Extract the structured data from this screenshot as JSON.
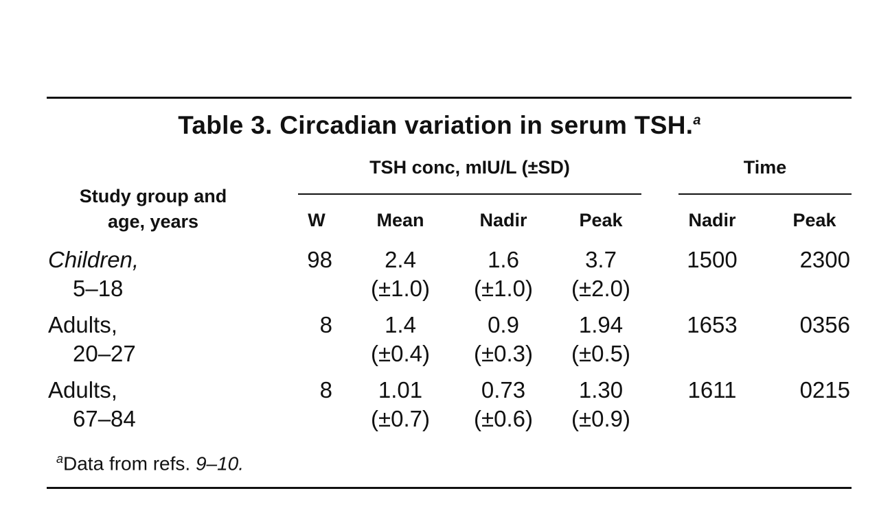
{
  "table": {
    "title": "Table 3. Circadian variation in serum TSH.",
    "title_footnote_mark": "a",
    "headers": {
      "study_group_line1": "Study group and",
      "study_group_line2": "age, years",
      "tsh_group": "TSH conc, mIU/L (±SD)",
      "time_group": "Time",
      "n": "W",
      "mean": "Mean",
      "nadir": "Nadir",
      "peak": "Peak",
      "time_nadir": "Nadir",
      "time_peak": "Peak"
    },
    "rows": [
      {
        "group": "Children,",
        "age": "5–18",
        "n": "98",
        "mean": "2.4",
        "mean_sd": "(±1.0)",
        "nadir": "1.6",
        "nadir_sd": "(±1.0)",
        "peak": "3.7",
        "peak_sd": "(±2.0)",
        "time_nadir": "1500",
        "time_peak": "2300"
      },
      {
        "group": "Adults,",
        "age": "20–27",
        "n": "8",
        "mean": "1.4",
        "mean_sd": "(±0.4)",
        "nadir": "0.9",
        "nadir_sd": "(±0.3)",
        "peak": "1.94",
        "peak_sd": "(±0.5)",
        "time_nadir": "1653",
        "time_peak": "0356"
      },
      {
        "group": "Adults,",
        "age": "67–84",
        "n": "8",
        "mean": "1.01",
        "mean_sd": "(±0.7)",
        "nadir": "0.73",
        "nadir_sd": "(±0.6)",
        "peak": "1.30",
        "peak_sd": "(±0.9)",
        "time_nadir": "1611",
        "time_peak": "0215"
      }
    ],
    "footnote_mark": "a",
    "footnote_text": "Data from refs. ",
    "footnote_refs": "9–10."
  }
}
